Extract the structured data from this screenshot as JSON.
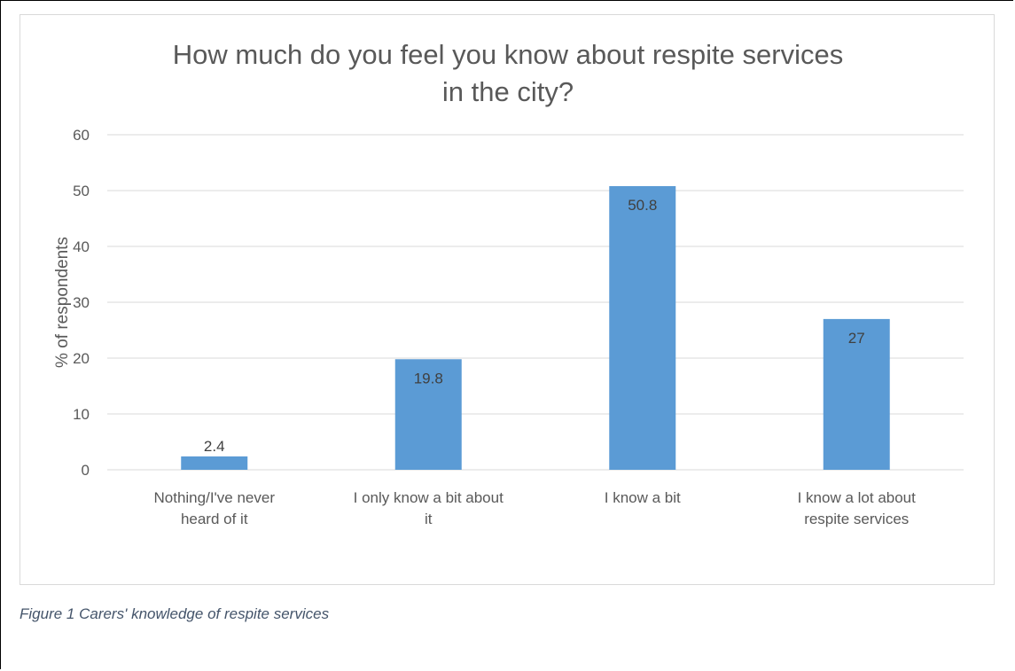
{
  "chart_data": {
    "type": "bar",
    "title_lines": [
      "How much do you feel you know about respite services",
      "in the city?"
    ],
    "categories": [
      [
        "Nothing/I've never",
        "heard of it"
      ],
      [
        "I only know a bit about",
        "it"
      ],
      [
        "I know a bit"
      ],
      [
        "I know a lot about",
        "respite services"
      ]
    ],
    "values": [
      2.4,
      19.8,
      50.8,
      27
    ],
    "value_labels": [
      "2.4",
      "19.8",
      "50.8",
      "27"
    ],
    "ylabel": "% of respondents",
    "ylim": [
      0,
      60
    ],
    "yticks": [
      0,
      10,
      20,
      30,
      40,
      50,
      60
    ],
    "grid": true,
    "bar_color": "#5b9bd5",
    "grid_color": "#d9d9d9",
    "text_color": "#595959"
  },
  "caption": "Figure 1 Carers' knowledge of respite services",
  "caption_color": "#44546a"
}
